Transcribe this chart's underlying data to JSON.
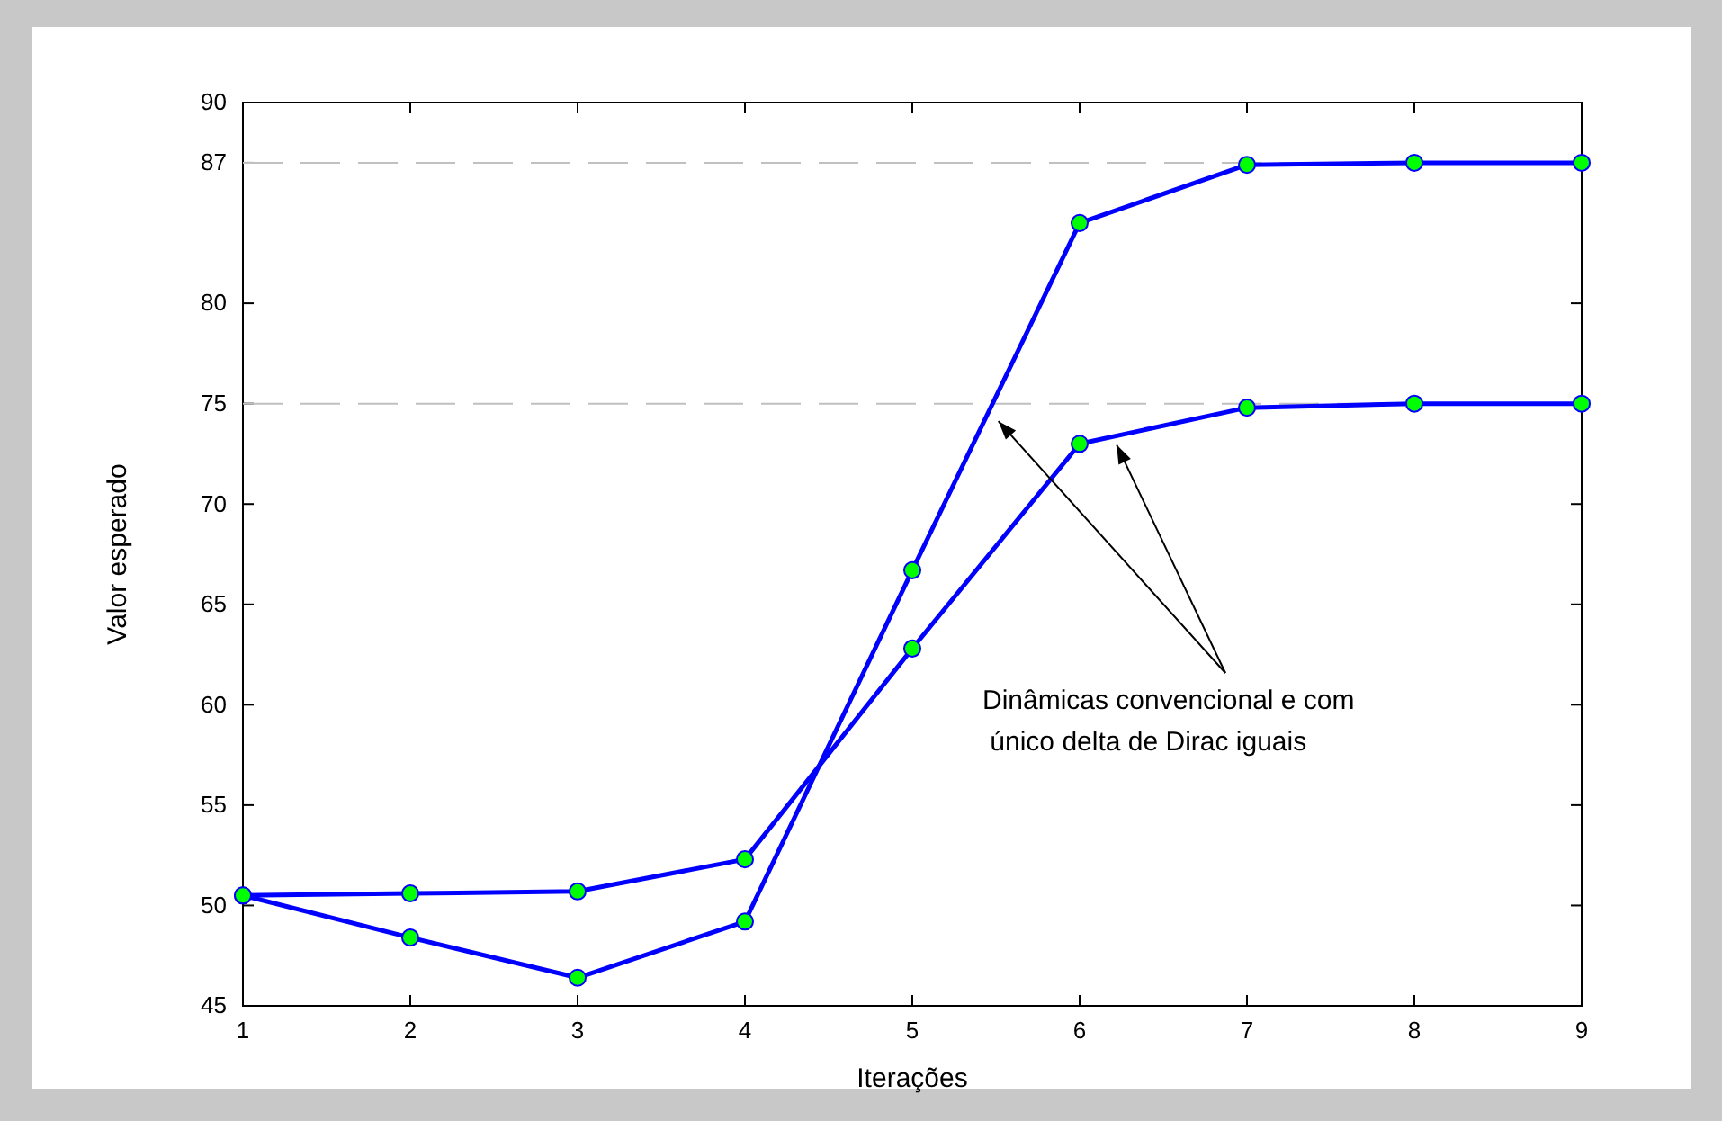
{
  "chart_data": {
    "type": "line",
    "xlabel": "Iterações",
    "ylabel": "Valor esperado",
    "x": [
      1,
      2,
      3,
      4,
      5,
      6,
      7,
      8,
      9
    ],
    "series": [
      {
        "color": "#0000ff",
        "values": [
          50.5,
          50.6,
          50.7,
          52.3,
          62.8,
          73,
          74.8,
          75,
          75
        ]
      },
      {
        "color": "#0000ff",
        "values": [
          50.5,
          48.4,
          46.4,
          49.2,
          66.7,
          84,
          86.9,
          87,
          87
        ]
      }
    ],
    "xlim": [
      1,
      9
    ],
    "xticks": [
      1,
      2,
      3,
      4,
      5,
      6,
      7,
      8,
      9
    ],
    "ylim": [
      45,
      90
    ],
    "yticks": [
      45,
      50,
      55,
      60,
      65,
      70,
      75,
      80,
      87,
      90
    ],
    "ref_lines": [
      {
        "axis": "y",
        "value": 87,
        "color": "#c0c0c0",
        "line_style": "dashed"
      },
      {
        "axis": "y",
        "value": 75,
        "color": "#c0c0c0",
        "line_style": "dashed"
      }
    ],
    "annotations": [
      {
        "text": "Dinâmicas convencional e com\n único delta de Dirac iguais",
        "x": 6.2,
        "y": 73.3
      }
    ],
    "marker": "circle",
    "line_style": "solid"
  }
}
